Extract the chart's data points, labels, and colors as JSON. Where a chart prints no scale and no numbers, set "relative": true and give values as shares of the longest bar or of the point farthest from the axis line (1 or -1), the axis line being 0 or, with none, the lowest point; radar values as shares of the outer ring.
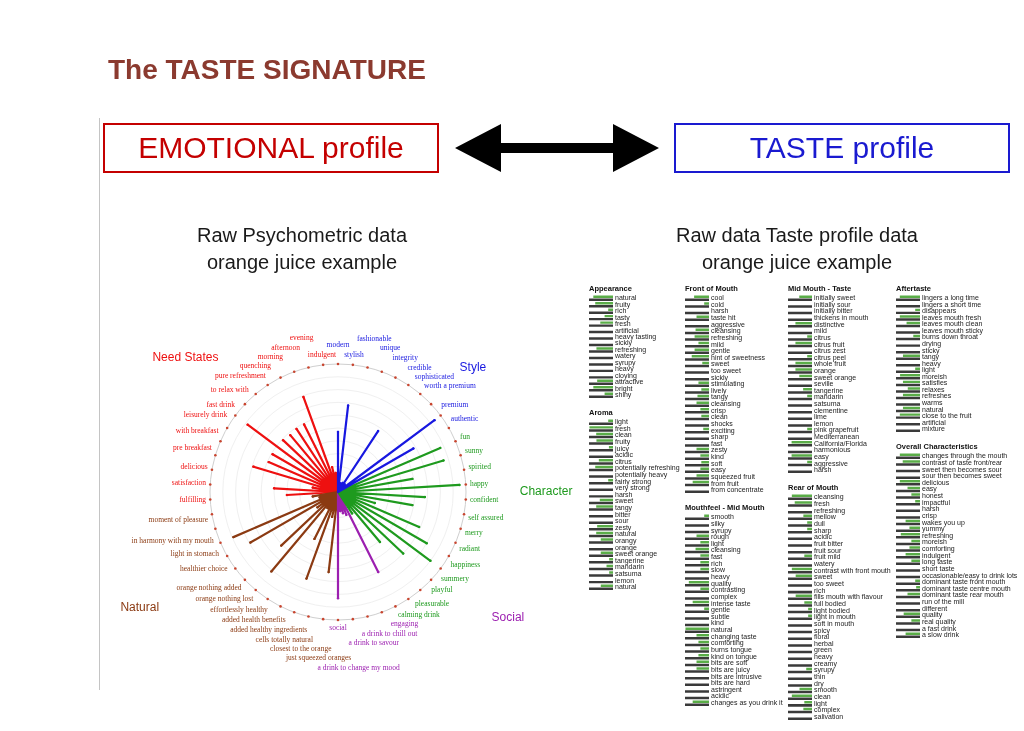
{
  "chart_data": [
    {
      "type": "other",
      "title": "The TASTE SIGNATURE",
      "annotations": [
        "EMOTIONAL profile",
        "TASTE profile"
      ]
    },
    {
      "type": "radar",
      "title": "Raw Psychometric data",
      "subtitle": "orange juice example",
      "relative": true,
      "grid": true,
      "categories": [
        "modern",
        "stylish",
        "fashionable",
        "unique",
        "integrity",
        "credible",
        "sophisticated",
        "worth a premium",
        "premium",
        "authentic",
        "fun",
        "sunny",
        "spirited",
        "happy",
        "confident",
        "self assured",
        "merry",
        "radiant",
        "happiness",
        "summery",
        "playful",
        "pleasurable",
        "calming drink",
        "engaging",
        "a drink to chill out",
        "a drink to savour",
        "a drink to change my mood",
        "social",
        "just squeezed oranges",
        "closest to the orange",
        "cells totally natural",
        "added healthy ingredients",
        "added health benefits",
        "effortlessly healthy",
        "orange nothing lost",
        "orange nothing added",
        "healthier choice",
        "light in stomach",
        "in harmony with my mouth",
        "moment of pleasure",
        "fulfilling",
        "satisfaction",
        "delicious",
        "pre breakfast",
        "with breakfast",
        "leisurely drink",
        "fast drink",
        "to relax with",
        "pure refreshment",
        "quenching",
        "morning",
        "afternoon",
        "evening",
        "indulgent"
      ],
      "series": [
        {
          "name": "Style",
          "color": "#1818e0",
          "values": [
            0.47,
            0.68,
            0.07,
            0.06,
            0.08,
            0.57,
            0.08,
            0.07,
            0.94,
            0.68,
            null,
            null,
            null,
            null,
            null,
            null,
            null,
            null,
            null,
            null,
            null,
            null,
            null,
            null,
            null,
            null,
            null,
            null,
            null,
            null,
            null,
            null,
            null,
            null,
            null,
            null,
            null,
            null,
            null,
            null,
            null,
            null,
            null,
            null,
            null,
            null,
            null,
            null,
            null,
            null,
            null,
            null,
            null,
            null
          ]
        },
        {
          "name": "Character",
          "color": "#1e9a1e",
          "values": [
            null,
            null,
            null,
            null,
            null,
            null,
            null,
            null,
            null,
            null,
            0.87,
            0.86,
            0.59,
            0.95,
            0.68,
            0.59,
            0.3,
            0.69,
            0.8,
            0.9,
            0.7,
            0.51,
            0.2,
            null,
            null,
            null,
            null,
            null,
            null,
            null,
            null,
            null,
            null,
            null,
            null,
            null,
            null,
            null,
            null,
            null,
            null,
            null,
            null,
            null,
            null,
            null,
            null,
            null,
            null,
            null,
            null,
            null,
            null,
            null
          ]
        },
        {
          "name": "Social",
          "color": "#9c1fb0",
          "values": [
            null,
            null,
            null,
            null,
            null,
            null,
            null,
            null,
            null,
            null,
            null,
            null,
            null,
            null,
            null,
            null,
            null,
            null,
            null,
            null,
            null,
            null,
            null,
            0.7,
            0.19,
            0.17,
            0.15,
            0.83,
            null,
            null,
            null,
            null,
            null,
            null,
            null,
            null,
            null,
            null,
            null,
            null,
            null,
            null,
            null,
            null,
            null,
            null,
            null,
            null,
            null,
            null,
            null,
            null,
            null,
            null
          ]
        },
        {
          "name": "Natural",
          "color": "#8b3a12",
          "values": [
            null,
            null,
            null,
            null,
            null,
            null,
            null,
            null,
            null,
            null,
            null,
            null,
            null,
            null,
            null,
            null,
            null,
            null,
            null,
            null,
            null,
            null,
            null,
            null,
            null,
            null,
            null,
            null,
            0.63,
            0.2,
            0.72,
            0.41,
            0.15,
            0.81,
            0.61,
            0.2,
            0.79,
            0.89,
            0.15,
            0.2,
            null,
            null,
            null,
            null,
            null,
            null,
            null,
            null,
            null,
            null,
            null,
            null,
            null,
            null
          ]
        },
        {
          "name": "Need States",
          "color": "#ee1010",
          "values": [
            null,
            null,
            null,
            null,
            null,
            null,
            null,
            null,
            null,
            null,
            null,
            null,
            null,
            null,
            null,
            null,
            null,
            null,
            null,
            null,
            null,
            null,
            null,
            null,
            null,
            null,
            null,
            null,
            null,
            null,
            null,
            null,
            null,
            null,
            null,
            null,
            null,
            null,
            null,
            null,
            0.4,
            0.5,
            0.2,
            0.69,
            0.59,
            0.59,
            0.88,
            0.59,
            0.58,
            0.59,
            0.59,
            0.79,
            0.2,
            0.15
          ]
        }
      ]
    },
    {
      "type": "other",
      "title": "Raw data Taste profile data",
      "subtitle": "orange juice example"
    },
    {
      "type": "bar",
      "orientation": "horizontal",
      "relative": true,
      "title": "Appearance",
      "categories": [
        "natural",
        "fruity",
        "rich",
        "tasty",
        "fresh",
        "artificial",
        "heavy tasting",
        "sickly",
        "refreshing",
        "watery",
        "syrupy",
        "heavy",
        "cloying",
        "attractive",
        "bright",
        "shiny"
      ],
      "series": [
        {
          "color": "#5aad48",
          "values": [
            0.82,
            0.74,
            0.2,
            0.35,
            0.53,
            0,
            0,
            0,
            0.69,
            0,
            0,
            0,
            0,
            0.66,
            0.82,
            0.35
          ]
        },
        {
          "color": "#3a3a3a",
          "values": [
            1,
            1,
            1,
            1,
            1,
            1,
            1,
            1,
            1,
            1,
            1,
            1,
            1,
            1,
            1,
            1
          ]
        }
      ]
    },
    {
      "type": "bar",
      "orientation": "horizontal",
      "relative": true,
      "title": "Aroma",
      "categories": [
        "light",
        "fresh",
        "clean",
        "fruity",
        "juicy",
        "acidic",
        "citrus",
        "potentially refreshing",
        "potentially heavy",
        "fairly strong",
        "very strong",
        "harsh",
        "sweet",
        "tangy",
        "bitter",
        "sour",
        "zesty",
        "natural",
        "orangy",
        "orange",
        "sweet orange",
        "tangerine",
        "mandarin",
        "satsuma",
        "lemon",
        "natural"
      ],
      "series": [
        {
          "color": "#5aad48",
          "values": [
            0.2,
            0.98,
            0.7,
            0.69,
            0.17,
            0,
            0.59,
            0.74,
            0,
            0.2,
            0,
            0,
            0.55,
            0.7,
            0,
            0,
            0.66,
            0.7,
            0.51,
            0,
            0.51,
            0.16,
            0.27,
            0.16,
            0,
            0.51
          ]
        },
        {
          "color": "#3a3a3a",
          "values": [
            1,
            1,
            1,
            1,
            1,
            1,
            1,
            1,
            1,
            1,
            1,
            1,
            1,
            1,
            1,
            1,
            1,
            1,
            1,
            1,
            1,
            1,
            1,
            1,
            1,
            1
          ]
        }
      ]
    },
    {
      "type": "bar",
      "orientation": "horizontal",
      "relative": true,
      "title": "Front of Mouth",
      "categories": [
        "cool",
        "cold",
        "harsh",
        "taste hit",
        "aggressive",
        "cleansing",
        "refreshing",
        "mild",
        "gentle",
        "hint of sweetness",
        "sweet",
        "too sweet",
        "sickly",
        "stimulating",
        "lively",
        "tangy",
        "cleansing",
        "crisp",
        "clean",
        "shocks",
        "exciting",
        "sharp",
        "fast",
        "zesty",
        "kind",
        "soft",
        "easy",
        "squeezed fruit",
        "from fruit",
        "from concentrate"
      ],
      "series": [
        {
          "color": "#5aad48",
          "values": [
            0.62,
            0.2,
            0,
            0.52,
            0,
            0.56,
            0.6,
            0.44,
            0.6,
            0.72,
            0.28,
            0,
            0,
            0.44,
            0.32,
            0.48,
            0.52,
            0.36,
            0.32,
            0,
            0.24,
            0,
            0,
            0.52,
            0.36,
            0.32,
            0.36,
            0.52,
            0.68,
            0
          ]
        },
        {
          "color": "#3a3a3a",
          "values": [
            1,
            1,
            1,
            1,
            1,
            1,
            1,
            1,
            1,
            1,
            1,
            1,
            1,
            1,
            1,
            1,
            1,
            1,
            1,
            1,
            1,
            1,
            1,
            1,
            1,
            1,
            1,
            1,
            1,
            1
          ]
        }
      ]
    },
    {
      "type": "bar",
      "orientation": "horizontal",
      "relative": true,
      "title": "Mouthfeel - Mid Mouth",
      "categories": [
        "smooth",
        "silky",
        "syrupy",
        "rough",
        "light",
        "cleansing",
        "fast",
        "rich",
        "slow",
        "heavy",
        "quality",
        "contrasting",
        "complex",
        "intense taste",
        "gentle",
        "subtle",
        "kind",
        "natural",
        "changing taste",
        "comforting",
        "burns tongue",
        "kind on tongue",
        "bits are soft",
        "bits are juicy",
        "bits are intrusive",
        "bits are hard",
        "astringent",
        "acidic",
        "changes as you drink it"
      ],
      "series": [
        {
          "color": "#5aad48",
          "values": [
            0.2,
            0,
            0,
            0.52,
            0.36,
            0.56,
            0.36,
            0.36,
            0.36,
            0,
            0.84,
            0.36,
            0,
            0.68,
            0.2,
            0,
            0,
            0.98,
            0.52,
            0.44,
            0.36,
            0.44,
            0.52,
            0.52,
            0,
            0,
            0,
            0,
            0.68
          ]
        },
        {
          "color": "#3a3a3a",
          "values": [
            1,
            1,
            1,
            1,
            1,
            1,
            1,
            1,
            1,
            1,
            1,
            1,
            1,
            1,
            1,
            1,
            1,
            1,
            1,
            1,
            1,
            1,
            1,
            1,
            1,
            1,
            1,
            1,
            1
          ]
        }
      ]
    },
    {
      "type": "bar",
      "orientation": "horizontal",
      "relative": true,
      "title": "Mid Mouth - Taste",
      "categories": [
        "initially sweet",
        "initially sour",
        "initially bitter",
        "thickens in mouth",
        "distinctive",
        "mild",
        "citrus",
        "citrus fruit",
        "citrus zest",
        "citrus peel",
        "whole fruit",
        "orange",
        "sweet orange",
        "seville",
        "tangerine",
        "mandarin",
        "satsuma",
        "clementine",
        "lime",
        "lemon",
        "pink grapefruit",
        "Mediterranean",
        "California/Florida",
        "harmonious",
        "easy",
        "aggressive",
        "harsh"
      ],
      "series": [
        {
          "color": "#5aad48",
          "values": [
            0.53,
            0,
            0,
            0,
            0.69,
            0,
            0.2,
            0.69,
            0,
            0.2,
            0.69,
            0.69,
            0.53,
            0,
            0.37,
            0.2,
            0,
            0,
            0,
            0,
            0.2,
            0,
            0.85,
            0,
            0.85,
            0.2,
            0
          ]
        },
        {
          "color": "#3a3a3a",
          "values": [
            1,
            1,
            1,
            1,
            1,
            1,
            1,
            1,
            1,
            1,
            1,
            1,
            1,
            1,
            1,
            1,
            1,
            1,
            1,
            1,
            1,
            1,
            1,
            1,
            1,
            1,
            1
          ]
        }
      ]
    },
    {
      "type": "bar",
      "orientation": "horizontal",
      "relative": true,
      "title": "Rear of Mouth",
      "categories": [
        "cleansing",
        "fresh",
        "refreshing",
        "mellow",
        "dull",
        "sharp",
        "acidic",
        "fruit bitter",
        "fruit sour",
        "fruit mild",
        "watery",
        "contrast with front mouth",
        "sweet",
        "too sweet",
        "rich",
        "fills mouth with flavour",
        "full bodied",
        "light bodied",
        "light in mouth",
        "soft in mouth",
        "spicy",
        "floral",
        "herbal",
        "green",
        "heavy",
        "creamy",
        "syrupy",
        "thin",
        "dry",
        "smooth",
        "clean",
        "light",
        "complex",
        "salivation"
      ],
      "series": [
        {
          "color": "#5aad48",
          "values": [
            0.84,
            0.72,
            0,
            0.36,
            0.2,
            0.2,
            0,
            0,
            0,
            0.32,
            0,
            0.84,
            0.68,
            0,
            0,
            0.68,
            0.32,
            0.16,
            0.16,
            0,
            0,
            0,
            0,
            0,
            0,
            0,
            0.24,
            0,
            0,
            0.52,
            0.84,
            0.32,
            0.36,
            0
          ]
        },
        {
          "color": "#3a3a3a",
          "values": [
            1,
            1,
            1,
            1,
            1,
            1,
            1,
            1,
            1,
            1,
            1,
            1,
            1,
            1,
            1,
            1,
            1,
            1,
            1,
            1,
            1,
            1,
            1,
            1,
            1,
            1,
            1,
            1,
            1,
            1,
            1,
            1,
            1,
            1
          ]
        }
      ]
    },
    {
      "type": "bar",
      "orientation": "horizontal",
      "relative": true,
      "title": "Aftertaste",
      "categories": [
        "lingers a long time",
        "lingers a short time",
        "disappears",
        "leaves mouth fresh",
        "leaves mouth clean",
        "leaves mouth sticky",
        "burns down throat",
        "drying",
        "sticky",
        "tangy",
        "heavy",
        "light",
        "moreish",
        "satisfies",
        "relaxes",
        "refreshes",
        "warms",
        "natural",
        "close to the fruit",
        "artificial",
        "mixture"
      ],
      "series": [
        {
          "color": "#5aad48",
          "values": [
            0.84,
            0,
            0.2,
            0.84,
            0.56,
            0,
            0.28,
            0,
            0,
            0.71,
            0,
            0.2,
            0.83,
            0.71,
            0.51,
            0.71,
            0,
            0.71,
            0.84,
            0,
            0
          ]
        },
        {
          "color": "#3a3a3a",
          "values": [
            1,
            1,
            1,
            1,
            1,
            1,
            1,
            1,
            1,
            1,
            1,
            1,
            1,
            1,
            1,
            1,
            1,
            1,
            1,
            1,
            1
          ]
        }
      ]
    },
    {
      "type": "bar",
      "orientation": "horizontal",
      "relative": true,
      "title": "Overall Characteristics",
      "categories": [
        "changes through the mouth",
        "contrast of taste front/rear",
        "sweet then becomes sour",
        "sour then becomes sweet",
        "delicious",
        "easy",
        "honest",
        "impactful",
        "harsh",
        "crisp",
        "wakes you up",
        "yummy",
        "refreshing",
        "moreish",
        "comforting",
        "indulgent",
        "long taste",
        "short taste",
        "occasionable/easy to drink lots",
        "dominant taste front mouth",
        "dominant taste centre mouth",
        "dominant taste rear mouth",
        "run of the mill",
        "different",
        "quality",
        "real quality",
        "a fast drink",
        "a slow drink"
      ],
      "series": [
        {
          "color": "#5aad48",
          "values": [
            0.84,
            0.72,
            0,
            0,
            0.84,
            0.52,
            0.36,
            0.2,
            0,
            0,
            0.6,
            0.44,
            0.8,
            0.36,
            0.44,
            0.6,
            0.36,
            0,
            0,
            0.2,
            0.16,
            0.52,
            0,
            0,
            0.68,
            0.36,
            0,
            0.6
          ]
        },
        {
          "color": "#3a3a3a",
          "values": [
            1,
            1,
            1,
            1,
            1,
            1,
            1,
            1,
            1,
            1,
            1,
            1,
            1,
            1,
            1,
            1,
            1,
            1,
            1,
            1,
            1,
            1,
            1,
            1,
            1,
            1,
            1,
            1
          ]
        }
      ]
    }
  ]
}
